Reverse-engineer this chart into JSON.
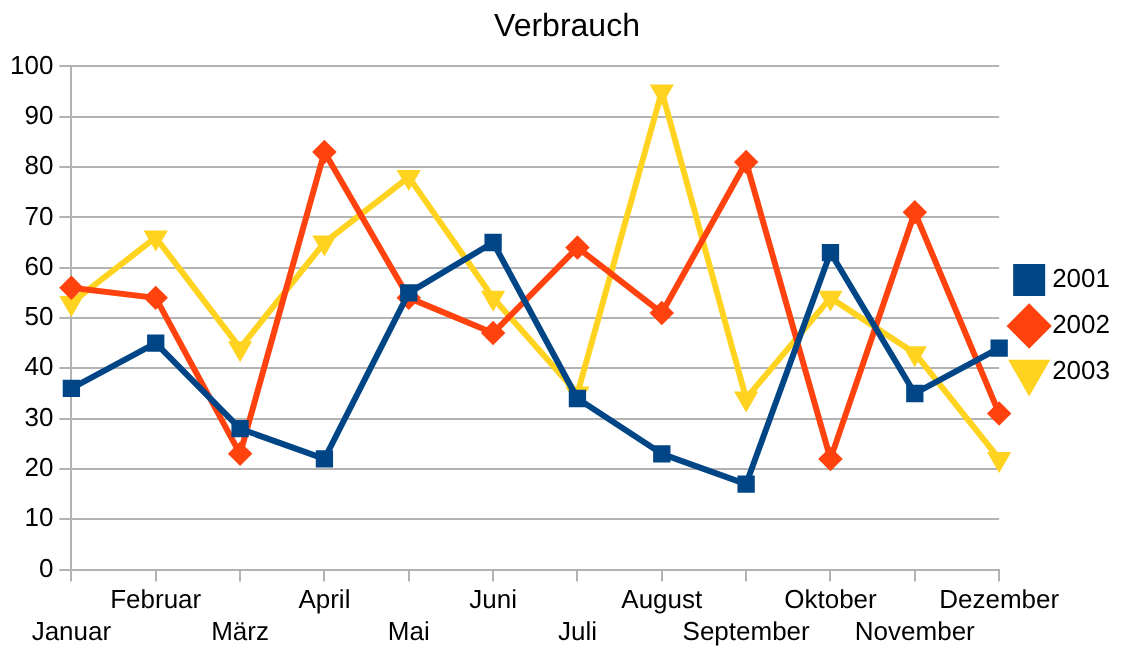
{
  "chart_data": {
    "type": "line",
    "title": "Verbrauch",
    "categories": [
      "Januar",
      "Februar",
      "März",
      "April",
      "Mai",
      "Juni",
      "Juli",
      "August",
      "September",
      "Oktober",
      "November",
      "Dezember"
    ],
    "series": [
      {
        "name": "2001",
        "color": "#004586",
        "marker": "square",
        "values": [
          36,
          45,
          28,
          22,
          55,
          65,
          34,
          23,
          17,
          63,
          35,
          44
        ]
      },
      {
        "name": "2002",
        "color": "#ff420e",
        "marker": "diamond",
        "values": [
          56,
          54,
          23,
          83,
          54,
          47,
          64,
          51,
          81,
          22,
          71,
          31
        ]
      },
      {
        "name": "2003",
        "color": "#ffd320",
        "marker": "triangle",
        "values": [
          53,
          66,
          44,
          65,
          78,
          54,
          35,
          95,
          34,
          54,
          43,
          22
        ]
      }
    ],
    "ylim": [
      0,
      100
    ],
    "yticks": [
      0,
      10,
      20,
      30,
      40,
      50,
      60,
      70,
      80,
      90,
      100
    ],
    "grid": "y",
    "legend": "right"
  }
}
